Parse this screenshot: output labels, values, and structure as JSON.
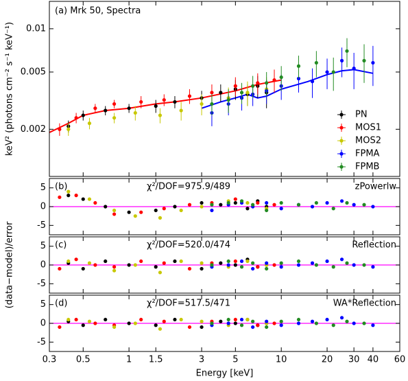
{
  "chart_data": [
    {
      "type": "scatter",
      "title": "(a) Mrk 50, Spectra",
      "ylabel": "keV² (photons cm⁻² s⁻¹ keV⁻¹)",
      "log_y": true,
      "ylim": [
        0.00094,
        0.0155
      ],
      "yticks": [
        0.002,
        0.005,
        0.01
      ],
      "legend": "lower right",
      "series": [
        {
          "name": "PN",
          "color": "#000000",
          "x": [
            0.4,
            0.5,
            0.7,
            1.0,
            1.5,
            2,
            3,
            4,
            5,
            6,
            7,
            8
          ],
          "values": [
            0.0021,
            0.0025,
            0.0027,
            0.0028,
            0.0029,
            0.0031,
            0.0033,
            0.0036,
            0.0038,
            0.0035,
            0.004,
            0.0036
          ],
          "yerr": [
            0.0002,
            0.0002,
            0.0002,
            0.0002,
            0.0003,
            0.0003,
            0.0004,
            0.0005,
            0.0006,
            0.0006,
            0.0007,
            0.0008
          ]
        },
        {
          "name": "MOS1",
          "color": "#ff0000",
          "x": [
            0.35,
            0.45,
            0.6,
            0.8,
            1.2,
            1.7,
            2.5,
            3.5,
            5,
            7,
            9
          ],
          "values": [
            0.002,
            0.0024,
            0.0028,
            0.003,
            0.0031,
            0.0032,
            0.0034,
            0.0036,
            0.004,
            0.0042,
            0.0044
          ],
          "yerr": [
            0.0002,
            0.0002,
            0.0002,
            0.0002,
            0.0003,
            0.0003,
            0.0004,
            0.0005,
            0.0006,
            0.0007,
            0.0008
          ]
        },
        {
          "name": "MOS2",
          "color": "#c8c800",
          "x": [
            0.4,
            0.55,
            0.8,
            1.1,
            1.6,
            2.2,
            3,
            4.5,
            6,
            8
          ],
          "values": [
            0.002,
            0.0022,
            0.0024,
            0.0026,
            0.0025,
            0.0027,
            0.003,
            0.0033,
            0.0036,
            0.0038
          ],
          "yerr": [
            0.0002,
            0.0002,
            0.0002,
            0.0003,
            0.0003,
            0.0004,
            0.0005,
            0.0006,
            0.0007,
            0.0008
          ]
        },
        {
          "name": "FPMA",
          "color": "#0000ff",
          "x": [
            3.5,
            4.5,
            5.5,
            6.5,
            8,
            10,
            13,
            16,
            20,
            25,
            30,
            40
          ],
          "values": [
            0.0026,
            0.003,
            0.0033,
            0.0035,
            0.0037,
            0.004,
            0.0045,
            0.0043,
            0.005,
            0.006,
            0.0053,
            0.0058
          ],
          "yerr": [
            0.0005,
            0.0005,
            0.0006,
            0.0006,
            0.0007,
            0.0008,
            0.0009,
            0.001,
            0.0012,
            0.0014,
            0.0015,
            0.0018
          ]
        },
        {
          "name": "FPMB",
          "color": "#228b22",
          "x": [
            3.5,
            4.5,
            5.5,
            6.5,
            8,
            10,
            13,
            17,
            22,
            27,
            35
          ],
          "values": [
            0.003,
            0.0032,
            0.0036,
            0.004,
            0.0042,
            0.0046,
            0.0055,
            0.0058,
            0.005,
            0.007,
            0.006
          ],
          "yerr": [
            0.0005,
            0.0006,
            0.0006,
            0.0007,
            0.0008,
            0.0009,
            0.001,
            0.0012,
            0.0013,
            0.0016,
            0.0018
          ]
        }
      ],
      "models": [
        {
          "color": "#ff0000",
          "x": [
            0.3,
            0.4,
            0.5,
            0.7,
            1,
            1.5,
            2,
            3,
            5,
            7,
            10
          ],
          "values": [
            0.0019,
            0.0022,
            0.0025,
            0.0027,
            0.0028,
            0.003,
            0.0031,
            0.0033,
            0.0037,
            0.0041,
            0.0044
          ]
        },
        {
          "color": "#0000ff",
          "x": [
            3,
            4,
            5,
            6,
            7,
            8,
            10,
            15,
            20,
            25,
            30,
            40
          ],
          "values": [
            0.0028,
            0.0031,
            0.0033,
            0.0035,
            0.0033,
            0.0034,
            0.0038,
            0.0043,
            0.0048,
            0.0051,
            0.0052,
            0.0049
          ]
        }
      ]
    },
    {
      "type": "scatter",
      "label": "(b)",
      "annotation": "χ²/DOF=975.9/489",
      "model_name": "zPowerlw",
      "ylim": [
        -7.5,
        7.5
      ],
      "yticks": [
        -5,
        0,
        5
      ],
      "reference_line": 0,
      "reference_color": "#ff00ff",
      "series": [
        {
          "color": "#000000",
          "x": [
            0.4,
            0.5,
            0.7,
            1.0,
            1.5,
            2,
            3,
            4,
            5,
            6,
            7,
            8
          ],
          "values": [
            3,
            2,
            0,
            -1.5,
            -1,
            0,
            1,
            0.5,
            1,
            -0.5,
            1.5,
            0
          ]
        },
        {
          "color": "#ff0000",
          "x": [
            0.35,
            0.45,
            0.6,
            0.8,
            1.2,
            1.7,
            2.5,
            3.5,
            5,
            7,
            9
          ],
          "values": [
            2.5,
            3,
            1,
            -2,
            -1.5,
            -0.5,
            0.5,
            1,
            2,
            1,
            0.5
          ]
        },
        {
          "color": "#c8c800",
          "x": [
            0.4,
            0.55,
            0.8,
            1.1,
            1.6,
            2.2,
            3,
            4.5,
            6,
            8
          ],
          "values": [
            4,
            2,
            -1,
            -2.5,
            -3,
            -1,
            0,
            1.5,
            1,
            -0.5
          ]
        },
        {
          "color": "#0000ff",
          "x": [
            3.5,
            4.5,
            5.5,
            6.5,
            8,
            10,
            13,
            16,
            20,
            25,
            30,
            40
          ],
          "values": [
            -1,
            0.5,
            1,
            0,
            1,
            -0.5,
            0.5,
            0,
            1,
            1.5,
            0.5,
            0
          ]
        },
        {
          "color": "#228b22",
          "x": [
            3.5,
            4.5,
            5.5,
            6.5,
            8,
            10,
            13,
            17,
            22,
            27,
            35
          ],
          "values": [
            0.5,
            1,
            1.5,
            0.5,
            -1,
            1,
            0.5,
            1,
            -0.5,
            1,
            0.5
          ]
        }
      ]
    },
    {
      "type": "scatter",
      "label": "(c)",
      "annotation": "χ²/DOF=520.0/474",
      "model_name": "Reflection",
      "ylabel": "(data−model)/error",
      "ylim": [
        -7.5,
        7.5
      ],
      "yticks": [
        -5,
        0,
        5
      ],
      "reference_line": 0,
      "reference_color": "#ff00ff",
      "series": [
        {
          "color": "#000000",
          "x": [
            0.4,
            0.5,
            0.7,
            1.0,
            1.5,
            2,
            3,
            4,
            5,
            6,
            7,
            8
          ],
          "values": [
            0.5,
            -1,
            1,
            0,
            -0.5,
            1,
            -1,
            0.5,
            0,
            1.5,
            -0.5,
            0
          ]
        },
        {
          "color": "#ff0000",
          "x": [
            0.35,
            0.45,
            0.6,
            0.8,
            1.2,
            1.7,
            2.5,
            3.5,
            5,
            7,
            9
          ],
          "values": [
            -1,
            1.5,
            0,
            -0.5,
            1,
            0.5,
            -1,
            0.5,
            1,
            -0.5,
            0
          ]
        },
        {
          "color": "#c8c800",
          "x": [
            0.4,
            0.55,
            0.8,
            1.1,
            1.6,
            2.2,
            3,
            4.5,
            6,
            8
          ],
          "values": [
            1,
            0.5,
            -1.5,
            0,
            -2,
            1,
            0.5,
            -0.5,
            1,
            0
          ]
        },
        {
          "color": "#0000ff",
          "x": [
            3.5,
            4.5,
            5.5,
            6.5,
            8,
            10,
            13,
            16,
            20,
            25,
            30,
            40
          ],
          "values": [
            -0.5,
            0,
            1,
            -1,
            0.5,
            -0.5,
            0,
            0.5,
            1,
            1.5,
            0,
            -0.5
          ]
        },
        {
          "color": "#228b22",
          "x": [
            3.5,
            4.5,
            5.5,
            6.5,
            8,
            10,
            13,
            17,
            22,
            27,
            35
          ],
          "values": [
            0,
            1,
            -0.5,
            0.5,
            -1,
            0.5,
            1,
            0,
            -0.5,
            0.5,
            0
          ]
        }
      ]
    },
    {
      "type": "scatter",
      "label": "(d)",
      "annotation": "χ²/DOF=517.5/471",
      "model_name": "WA*Reflection",
      "xlabel": "Energy [keV]",
      "log_x": true,
      "xlim": [
        0.3,
        60
      ],
      "xticks": [
        0.3,
        0.5,
        1,
        1.5,
        3,
        5,
        10,
        20,
        30,
        40,
        60
      ],
      "ylim": [
        -7.5,
        7.5
      ],
      "yticks": [
        -5,
        0,
        5
      ],
      "reference_line": 0,
      "reference_color": "#ff00ff",
      "series": [
        {
          "color": "#000000",
          "x": [
            0.4,
            0.5,
            0.7,
            1.0,
            1.5,
            2,
            3,
            4,
            5,
            6,
            7,
            8
          ],
          "values": [
            0.5,
            -0.5,
            1,
            0,
            -0.5,
            1,
            -1,
            0.5,
            0,
            1,
            -0.5,
            0
          ]
        },
        {
          "color": "#ff0000",
          "x": [
            0.35,
            0.45,
            0.6,
            0.8,
            1.2,
            1.7,
            2.5,
            3.5,
            5,
            7,
            9
          ],
          "values": [
            -1,
            1,
            0,
            -0.5,
            1,
            0.5,
            -1,
            0.5,
            1,
            -0.5,
            0
          ]
        },
        {
          "color": "#c8c800",
          "x": [
            0.4,
            0.55,
            0.8,
            1.1,
            1.6,
            2.2,
            3,
            4.5,
            6,
            8
          ],
          "values": [
            1,
            0.5,
            -1,
            0,
            -1.5,
            1,
            0.5,
            -0.5,
            1,
            0
          ]
        },
        {
          "color": "#0000ff",
          "x": [
            3.5,
            4.5,
            5.5,
            6.5,
            8,
            10,
            13,
            16,
            20,
            25,
            30,
            40
          ],
          "values": [
            -0.5,
            0,
            1,
            -1,
            0.5,
            -0.5,
            0,
            0.5,
            1,
            1.5,
            0,
            -0.5
          ]
        },
        {
          "color": "#228b22",
          "x": [
            3.5,
            4.5,
            5.5,
            6.5,
            8,
            10,
            13,
            17,
            22,
            27,
            35
          ],
          "values": [
            0,
            1,
            -0.5,
            0.5,
            -1,
            0.5,
            1,
            0,
            -0.5,
            0.5,
            0
          ]
        }
      ]
    }
  ]
}
